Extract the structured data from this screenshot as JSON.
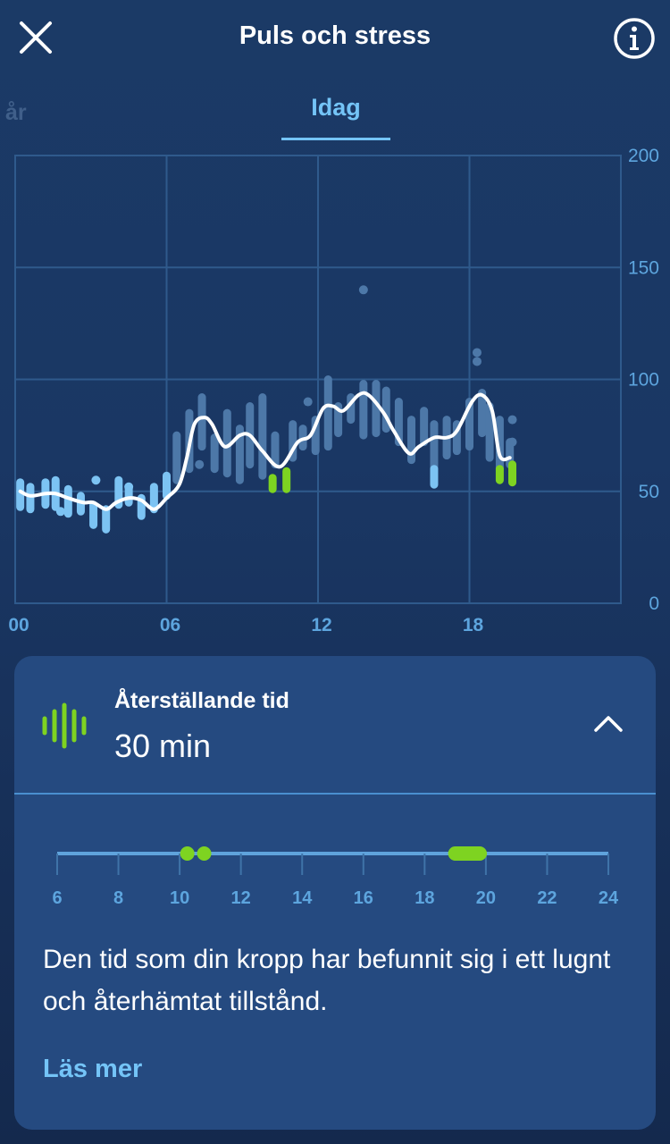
{
  "header": {
    "title": "Puls och stress",
    "close_icon": "close-icon",
    "info_icon": "info-icon"
  },
  "tabs": {
    "previous": "år",
    "active": "Idag"
  },
  "chart_data": {
    "type": "line",
    "title": "",
    "x_ticks": [
      "00",
      "06",
      "12",
      "18"
    ],
    "y_ticks": [
      "0",
      "50",
      "100",
      "150",
      "200"
    ],
    "ylim": [
      0,
      200
    ],
    "xlim": [
      0,
      24
    ],
    "grid": true,
    "series": [
      {
        "x": [
          0.2,
          0.6,
          1.2,
          1.6,
          2.1,
          2.7,
          3.1,
          3.6,
          4.0,
          4.5,
          5.0,
          5.5,
          6.0,
          6.5,
          6.8,
          7.1,
          7.5,
          7.8,
          8.3,
          8.9,
          9.3,
          9.8,
          10.5,
          11.2,
          11.7,
          12.2,
          12.6,
          13.0,
          13.6,
          14.0,
          14.6,
          15.0,
          15.6,
          16.0,
          16.6,
          17.1,
          17.5,
          18.1,
          18.5,
          18.9,
          19.2,
          19.6
        ],
        "y": [
          50,
          48,
          49,
          49,
          47,
          45,
          45,
          42,
          45,
          47,
          46,
          42,
          47,
          53,
          65,
          80,
          83,
          80,
          70,
          75,
          75,
          68,
          61,
          72,
          75,
          87,
          88,
          86,
          93,
          93,
          85,
          77,
          67,
          70,
          74,
          74,
          77,
          90,
          93,
          86,
          66,
          65
        ]
      }
    ],
    "ranges": [
      {
        "x": 0.2,
        "lo": 43,
        "hi": 54,
        "c": "#7cc3f3"
      },
      {
        "x": 0.6,
        "lo": 42,
        "hi": 52,
        "c": "#7cc3f3"
      },
      {
        "x": 1.2,
        "lo": 44,
        "hi": 54,
        "c": "#7cc3f3"
      },
      {
        "x": 1.6,
        "lo": 43,
        "hi": 55,
        "c": "#7cc3f3"
      },
      {
        "x": 2.1,
        "lo": 40,
        "hi": 51,
        "c": "#7cc3f3"
      },
      {
        "x": 2.6,
        "lo": 41,
        "hi": 48,
        "c": "#7cc3f3"
      },
      {
        "x": 3.1,
        "lo": 35,
        "hi": 44,
        "c": "#7cc3f3"
      },
      {
        "x": 3.6,
        "lo": 33,
        "hi": 42,
        "c": "#7cc3f3"
      },
      {
        "x": 4.1,
        "lo": 44,
        "hi": 55,
        "c": "#7cc3f3"
      },
      {
        "x": 4.5,
        "lo": 45,
        "hi": 52,
        "c": "#7cc3f3"
      },
      {
        "x": 5.0,
        "lo": 39,
        "hi": 47,
        "c": "#7cc3f3"
      },
      {
        "x": 5.5,
        "lo": 42,
        "hi": 52,
        "c": "#7cc3f3"
      },
      {
        "x": 6.0,
        "lo": 48,
        "hi": 57,
        "c": "#7cc3f3"
      },
      {
        "x": 6.4,
        "lo": 55,
        "hi": 75,
        "c": "#4d78a8"
      },
      {
        "x": 6.9,
        "lo": 60,
        "hi": 85,
        "c": "#4d78a8"
      },
      {
        "x": 7.4,
        "lo": 70,
        "hi": 92,
        "c": "#4d78a8"
      },
      {
        "x": 7.9,
        "lo": 60,
        "hi": 74,
        "c": "#4d78a8"
      },
      {
        "x": 8.4,
        "lo": 58,
        "hi": 85,
        "c": "#4d78a8"
      },
      {
        "x": 8.9,
        "lo": 55,
        "hi": 78,
        "c": "#4d78a8"
      },
      {
        "x": 9.3,
        "lo": 62,
        "hi": 88,
        "c": "#4d78a8"
      },
      {
        "x": 9.8,
        "lo": 57,
        "hi": 92,
        "c": "#4d78a8"
      },
      {
        "x": 10.3,
        "lo": 62,
        "hi": 75,
        "c": "#4d78a8"
      },
      {
        "x": 11.0,
        "lo": 65,
        "hi": 80,
        "c": "#4d78a8"
      },
      {
        "x": 11.4,
        "lo": 70,
        "hi": 78,
        "c": "#4d78a8"
      },
      {
        "x": 11.9,
        "lo": 68,
        "hi": 82,
        "c": "#4d78a8"
      },
      {
        "x": 12.4,
        "lo": 70,
        "hi": 100,
        "c": "#4d78a8"
      },
      {
        "x": 12.8,
        "lo": 76,
        "hi": 88,
        "c": "#4d78a8"
      },
      {
        "x": 13.3,
        "lo": 82,
        "hi": 92,
        "c": "#4d78a8"
      },
      {
        "x": 13.8,
        "lo": 75,
        "hi": 98,
        "c": "#4d78a8"
      },
      {
        "x": 14.3,
        "lo": 76,
        "hi": 98,
        "c": "#4d78a8"
      },
      {
        "x": 14.7,
        "lo": 78,
        "hi": 95,
        "c": "#4d78a8"
      },
      {
        "x": 15.2,
        "lo": 72,
        "hi": 90,
        "c": "#4d78a8"
      },
      {
        "x": 15.7,
        "lo": 64,
        "hi": 82,
        "c": "#4d78a8"
      },
      {
        "x": 16.2,
        "lo": 72,
        "hi": 86,
        "c": "#4d78a8"
      },
      {
        "x": 16.6,
        "lo": 60,
        "hi": 80,
        "c": "#4d78a8"
      },
      {
        "x": 17.1,
        "lo": 66,
        "hi": 82,
        "c": "#4d78a8"
      },
      {
        "x": 17.5,
        "lo": 68,
        "hi": 80,
        "c": "#4d78a8"
      },
      {
        "x": 18.0,
        "lo": 70,
        "hi": 90,
        "c": "#4d78a8"
      },
      {
        "x": 18.5,
        "lo": 76,
        "hi": 94,
        "c": "#4d78a8"
      },
      {
        "x": 18.8,
        "lo": 65,
        "hi": 88,
        "c": "#4d78a8"
      },
      {
        "x": 19.2,
        "lo": 60,
        "hi": 82,
        "c": "#4d78a8"
      },
      {
        "x": 19.6,
        "lo": 62,
        "hi": 72,
        "c": "#4d78a8"
      },
      {
        "x": 10.2,
        "lo": 51,
        "hi": 56,
        "c": "#7ed321"
      },
      {
        "x": 10.75,
        "lo": 51,
        "hi": 59,
        "c": "#7ed321"
      },
      {
        "x": 16.6,
        "lo": 53,
        "hi": 60,
        "c": "#7cc3f3"
      },
      {
        "x": 19.2,
        "lo": 55,
        "hi": 60,
        "c": "#7ed321"
      },
      {
        "x": 19.7,
        "lo": 54,
        "hi": 62,
        "c": "#7ed321"
      }
    ],
    "dots": [
      {
        "x": 1.8,
        "y": 41,
        "c": "#7cc3f3"
      },
      {
        "x": 3.2,
        "y": 55,
        "c": "#7cc3f3"
      },
      {
        "x": 4.5,
        "y": 52,
        "c": "#7cc3f3"
      },
      {
        "x": 13.8,
        "y": 140,
        "c": "#4d78a8"
      },
      {
        "x": 18.3,
        "y": 108,
        "c": "#4d78a8"
      },
      {
        "x": 18.3,
        "y": 112,
        "c": "#4d78a8"
      },
      {
        "x": 19.7,
        "y": 82,
        "c": "#4d78a8"
      },
      {
        "x": 19.7,
        "y": 72,
        "c": "#4d78a8"
      },
      {
        "x": 7.3,
        "y": 62,
        "c": "#4d78a8"
      },
      {
        "x": 11.6,
        "y": 90,
        "c": "#4d78a8"
      }
    ]
  },
  "card": {
    "label": "Återställande tid",
    "value": "30 min",
    "icon": "recovery-waves-icon",
    "chevron_icon": "chevron-up-icon",
    "timeline": {
      "ticks": [
        "6",
        "8",
        "10",
        "12",
        "14",
        "16",
        "18",
        "20",
        "22",
        "24"
      ],
      "range": [
        6,
        24
      ],
      "dots": [
        10.25,
        10.8
      ],
      "segments": [
        [
          19.0,
          19.8
        ]
      ],
      "accent": "#7ed321"
    },
    "description": "Den tid som din kropp har befunnit sig i ett lugnt och återhämtat tillstånd.",
    "read_more": "Läs mer"
  },
  "colors": {
    "accent": "#74c4f7",
    "green": "#7ed321",
    "card_bg": "#254a80"
  }
}
